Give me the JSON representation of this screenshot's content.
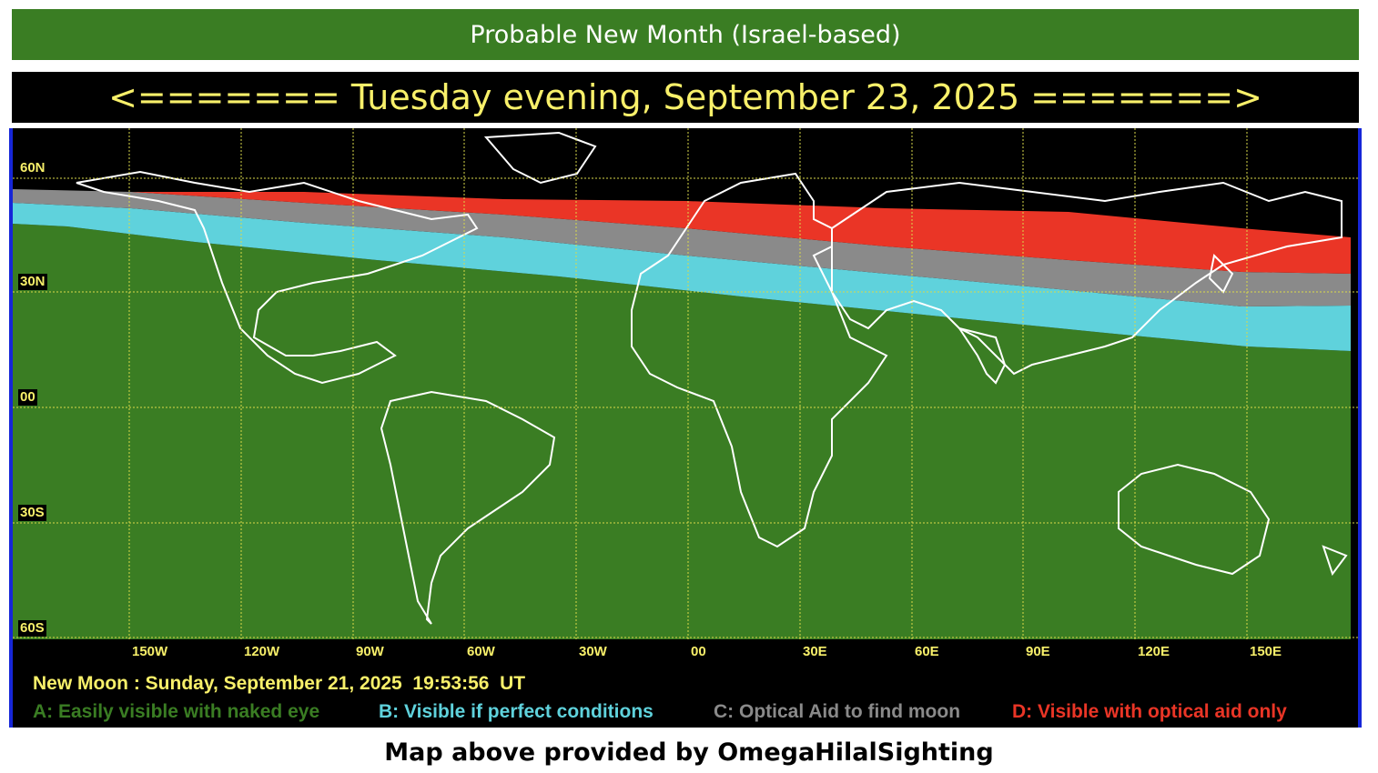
{
  "header": {
    "title": "Probable New Month (Israel-based)",
    "date_banner": "<======= Tuesday evening, September 23, 2025 =======>"
  },
  "map": {
    "latitude_labels": [
      "60N",
      "30N",
      "00",
      "30S",
      "60S"
    ],
    "longitude_labels": [
      "150W",
      "120W",
      "90W",
      "60W",
      "30W",
      "00",
      "30E",
      "60E",
      "90E",
      "120E",
      "150E"
    ],
    "colors": {
      "zone_a": "#3a7d23",
      "zone_b": "#5fd2dc",
      "zone_c": "#8a8a8a",
      "zone_d": "#ea3526",
      "background": "#000000",
      "grid": "#d9d94a",
      "coast": "#ffffff"
    }
  },
  "footer": {
    "new_moon": "New Moon : Sunday, September 21, 2025  19:53:56  UT",
    "legend": [
      {
        "label": "A: Easily visible with naked eye",
        "color": "#3a7d23"
      },
      {
        "label": "B: Visible if perfect conditions",
        "color": "#5fd2dc"
      },
      {
        "label": "C: Optical Aid to find moon",
        "color": "#8a8a8a"
      },
      {
        "label": "D: Visible with optical aid only",
        "color": "#ea3526"
      }
    ],
    "credit": "Map above provided by OmegaHilalSighting"
  }
}
